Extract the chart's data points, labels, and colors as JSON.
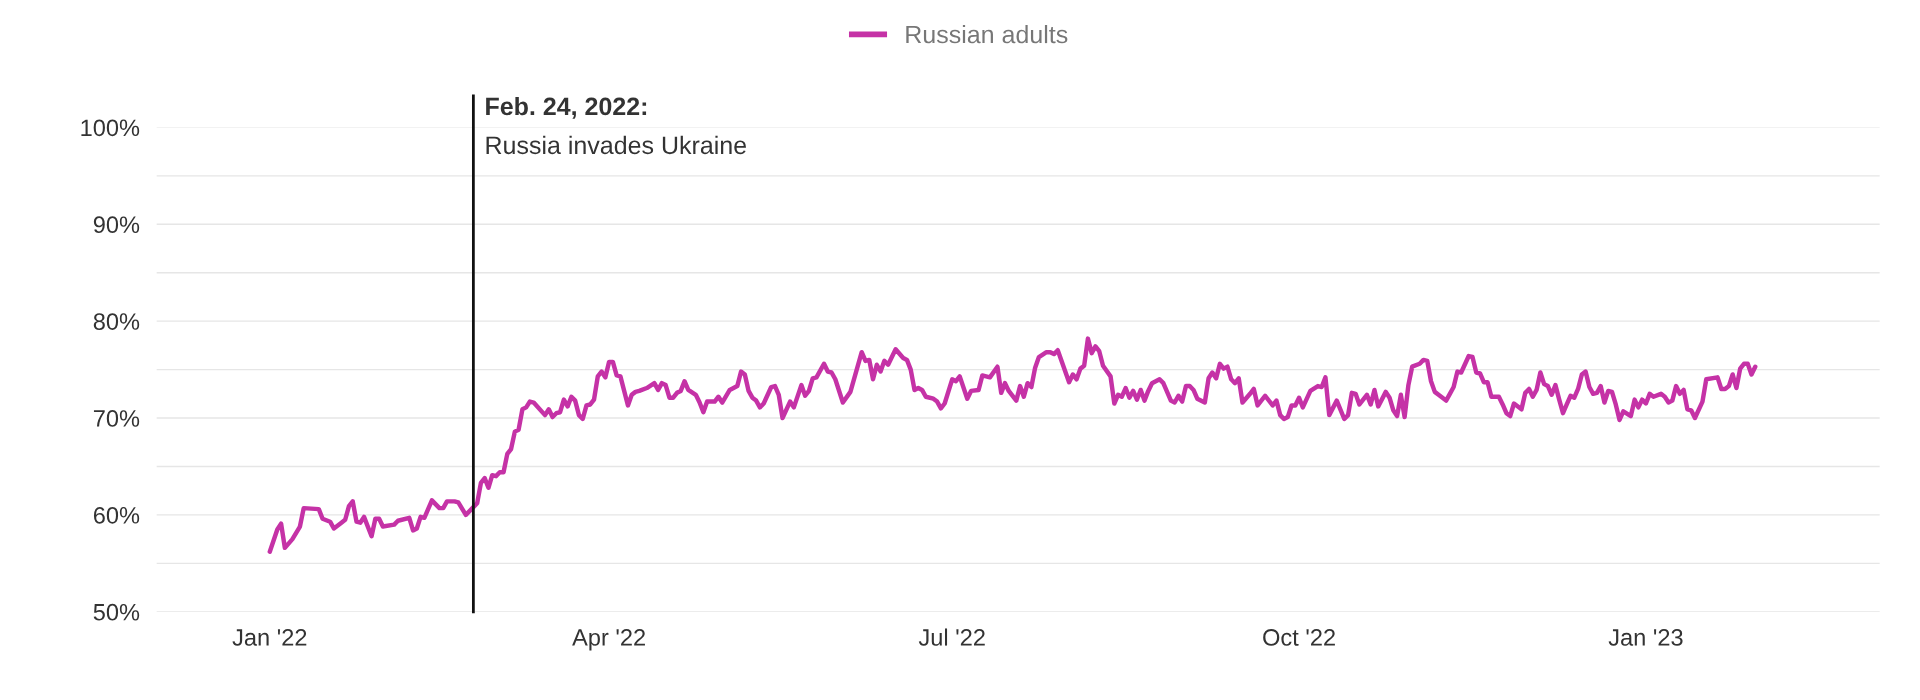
{
  "chart_data": {
    "type": "line",
    "x": [
      "2022-01-01",
      "2022-01-03",
      "2022-01-04",
      "2022-01-05",
      "2022-01-07",
      "2022-01-09",
      "2022-01-10",
      "2022-01-14",
      "2022-01-15",
      "2022-01-17",
      "2022-01-18",
      "2022-01-20",
      "2022-01-21",
      "2022-01-22",
      "2022-01-23",
      "2022-01-24",
      "2022-01-25",
      "2022-01-26",
      "2022-01-28",
      "2022-01-29",
      "2022-01-30",
      "2022-01-31",
      "2022-02-03",
      "2022-02-04",
      "2022-02-07",
      "2022-02-08",
      "2022-02-09",
      "2022-02-10",
      "2022-02-11",
      "2022-02-13",
      "2022-02-15",
      "2022-02-16",
      "2022-02-17",
      "2022-02-19",
      "2022-02-20",
      "2022-02-22",
      "2022-02-24",
      "2022-02-25",
      "2022-02-26",
      "2022-02-27",
      "2022-02-28",
      "2022-03-01",
      "2022-03-02",
      "2022-03-03",
      "2022-03-04",
      "2022-03-05",
      "2022-03-06",
      "2022-03-07",
      "2022-03-08",
      "2022-03-09",
      "2022-03-10",
      "2022-03-11",
      "2022-03-12",
      "2022-03-15",
      "2022-03-16",
      "2022-03-17",
      "2022-03-18",
      "2022-03-19",
      "2022-03-20",
      "2022-03-21",
      "2022-03-22",
      "2022-03-23",
      "2022-03-24",
      "2022-03-25",
      "2022-03-26",
      "2022-03-27",
      "2022-03-28",
      "2022-03-29",
      "2022-03-30",
      "2022-03-31",
      "2022-04-01",
      "2022-04-02",
      "2022-04-03",
      "2022-04-04",
      "2022-04-06",
      "2022-04-07",
      "2022-04-08",
      "2022-04-09",
      "2022-04-11",
      "2022-04-13",
      "2022-04-14",
      "2022-04-15",
      "2022-04-16",
      "2022-04-17",
      "2022-04-18",
      "2022-04-19",
      "2022-04-20",
      "2022-04-21",
      "2022-04-22",
      "2022-04-24",
      "2022-04-25",
      "2022-04-26",
      "2022-04-27",
      "2022-04-29",
      "2022-04-30",
      "2022-05-01",
      "2022-05-03",
      "2022-05-05",
      "2022-05-06",
      "2022-05-07",
      "2022-05-08",
      "2022-05-09",
      "2022-05-10",
      "2022-05-11",
      "2022-05-12",
      "2022-05-14",
      "2022-05-15",
      "2022-05-16",
      "2022-05-17",
      "2022-05-19",
      "2022-05-20",
      "2022-05-22",
      "2022-05-23",
      "2022-05-24",
      "2022-05-25",
      "2022-05-26",
      "2022-05-28",
      "2022-05-29",
      "2022-05-30",
      "2022-05-31",
      "2022-06-02",
      "2022-06-04",
      "2022-06-07",
      "2022-06-08",
      "2022-06-09",
      "2022-06-10",
      "2022-06-11",
      "2022-06-12",
      "2022-06-13",
      "2022-06-14",
      "2022-06-16",
      "2022-06-18",
      "2022-06-19",
      "2022-06-20",
      "2022-06-21",
      "2022-06-22",
      "2022-06-23",
      "2022-06-24",
      "2022-06-26",
      "2022-06-27",
      "2022-06-28",
      "2022-06-29",
      "2022-07-01",
      "2022-07-02",
      "2022-07-03",
      "2022-07-05",
      "2022-07-06",
      "2022-07-08",
      "2022-07-09",
      "2022-07-11",
      "2022-07-13",
      "2022-07-14",
      "2022-07-15",
      "2022-07-16",
      "2022-07-18",
      "2022-07-19",
      "2022-07-20",
      "2022-07-21",
      "2022-07-22",
      "2022-07-23",
      "2022-07-24",
      "2022-07-26",
      "2022-07-27",
      "2022-07-28",
      "2022-07-29",
      "2022-08-01",
      "2022-08-02",
      "2022-08-03",
      "2022-08-04",
      "2022-08-05",
      "2022-08-06",
      "2022-08-07",
      "2022-08-08",
      "2022-08-09",
      "2022-08-10",
      "2022-08-12",
      "2022-08-13",
      "2022-08-14",
      "2022-08-15",
      "2022-08-16",
      "2022-08-17",
      "2022-08-18",
      "2022-08-19",
      "2022-08-20",
      "2022-08-21",
      "2022-08-22",
      "2022-08-23",
      "2022-08-25",
      "2022-08-26",
      "2022-08-28",
      "2022-08-29",
      "2022-08-30",
      "2022-08-31",
      "2022-09-01",
      "2022-09-02",
      "2022-09-03",
      "2022-09-04",
      "2022-09-06",
      "2022-09-07",
      "2022-09-08",
      "2022-09-09",
      "2022-09-10",
      "2022-09-11",
      "2022-09-12",
      "2022-09-13",
      "2022-09-14",
      "2022-09-15",
      "2022-09-16",
      "2022-09-18",
      "2022-09-19",
      "2022-09-20",
      "2022-09-22",
      "2022-09-24",
      "2022-09-25",
      "2022-09-26",
      "2022-09-27",
      "2022-09-28",
      "2022-09-29",
      "2022-09-30",
      "2022-10-01",
      "2022-10-02",
      "2022-10-04",
      "2022-10-06",
      "2022-10-07",
      "2022-10-08",
      "2022-10-09",
      "2022-10-11",
      "2022-10-13",
      "2022-10-14",
      "2022-10-15",
      "2022-10-16",
      "2022-10-17",
      "2022-10-19",
      "2022-10-20",
      "2022-10-21",
      "2022-10-22",
      "2022-10-24",
      "2022-10-25",
      "2022-10-26",
      "2022-10-27",
      "2022-10-28",
      "2022-10-29",
      "2022-10-30",
      "2022-10-31",
      "2022-11-02",
      "2022-11-03",
      "2022-11-04",
      "2022-11-05",
      "2022-11-06",
      "2022-11-07",
      "2022-11-09",
      "2022-11-10",
      "2022-11-11",
      "2022-11-12",
      "2022-11-13",
      "2022-11-15",
      "2022-11-16",
      "2022-11-17",
      "2022-11-18",
      "2022-11-19",
      "2022-11-20",
      "2022-11-21",
      "2022-11-23",
      "2022-11-24",
      "2022-11-25",
      "2022-11-26",
      "2022-11-27",
      "2022-11-29",
      "2022-11-30",
      "2022-12-01",
      "2022-12-02",
      "2022-12-03",
      "2022-12-04",
      "2022-12-05",
      "2022-12-06",
      "2022-12-07",
      "2022-12-08",
      "2022-12-09",
      "2022-12-10",
      "2022-12-11",
      "2022-12-12",
      "2022-12-13",
      "2022-12-14",
      "2022-12-15",
      "2022-12-16",
      "2022-12-17",
      "2022-12-18",
      "2022-12-19",
      "2022-12-20",
      "2022-12-21",
      "2022-12-22",
      "2022-12-23",
      "2022-12-24",
      "2022-12-25",
      "2022-12-26",
      "2022-12-28",
      "2022-12-29",
      "2022-12-30",
      "2022-12-31",
      "2023-01-01",
      "2023-01-02",
      "2023-01-03",
      "2023-01-05",
      "2023-01-06",
      "2023-01-07",
      "2023-01-08",
      "2023-01-09",
      "2023-01-10",
      "2023-01-11",
      "2023-01-12",
      "2023-01-13",
      "2023-01-14",
      "2023-01-16",
      "2023-01-17",
      "2023-01-20",
      "2023-01-21",
      "2023-01-22",
      "2023-01-23",
      "2023-01-24",
      "2023-01-25",
      "2023-01-26",
      "2023-01-27",
      "2023-01-28",
      "2023-01-29",
      "2023-01-30"
    ],
    "series": [
      {
        "name": "Russian adults",
        "color": "#c532a6",
        "values": [
          56.2,
          58.5,
          59.1,
          56.6,
          57.5,
          58.8,
          60.7,
          60.6,
          59.6,
          59.3,
          58.6,
          59.2,
          59.5,
          60.9,
          61.4,
          59.3,
          59.2,
          59.8,
          57.8,
          59.6,
          59.6,
          58.8,
          59.0,
          59.4,
          59.7,
          58.4,
          58.6,
          59.8,
          59.7,
          61.5,
          60.7,
          60.7,
          61.4,
          61.4,
          61.3,
          60.0,
          60.8,
          61.2,
          63.3,
          63.8,
          62.8,
          64.1,
          64.0,
          64.4,
          64.4,
          66.3,
          66.8,
          68.6,
          68.8,
          70.9,
          71.1,
          71.7,
          71.6,
          70.3,
          70.9,
          70.1,
          70.5,
          70.6,
          71.9,
          71.2,
          72.2,
          71.8,
          70.3,
          69.9,
          71.3,
          71.4,
          71.9,
          74.3,
          74.8,
          74.2,
          75.8,
          75.8,
          74.4,
          74.3,
          71.3,
          72.4,
          72.7,
          72.8,
          73.1,
          73.6,
          72.9,
          73.6,
          73.4,
          72.1,
          72.1,
          72.6,
          72.8,
          73.8,
          72.9,
          72.4,
          71.6,
          70.6,
          71.7,
          71.7,
          72.2,
          71.6,
          72.9,
          73.3,
          74.8,
          74.5,
          72.8,
          72.1,
          71.8,
          71.1,
          71.5,
          73.2,
          73.3,
          72.4,
          70.0,
          71.7,
          71.1,
          73.4,
          72.3,
          72.8,
          74.1,
          74.2,
          75.6,
          74.8,
          74.7,
          74.0,
          71.6,
          72.7,
          76.8,
          75.9,
          76.0,
          74.0,
          75.5,
          74.8,
          75.9,
          75.5,
          77.1,
          76.2,
          76.0,
          75.0,
          72.9,
          73.1,
          72.9,
          72.2,
          72.0,
          71.7,
          71.0,
          71.5,
          74.0,
          73.8,
          74.3,
          72.0,
          72.8,
          72.9,
          74.4,
          74.2,
          75.3,
          72.6,
          73.6,
          72.8,
          71.8,
          73.3,
          72.2,
          73.6,
          73.2,
          75.2,
          76.3,
          76.8,
          76.8,
          76.6,
          77.0,
          73.7,
          74.5,
          74.0,
          75.1,
          75.4,
          78.2,
          76.7,
          77.4,
          76.9,
          75.4,
          74.3,
          71.5,
          72.4,
          72.2,
          73.1,
          72.1,
          72.8,
          71.9,
          72.9,
          71.8,
          72.8,
          73.6,
          74.0,
          73.6,
          71.8,
          71.6,
          72.3,
          71.7,
          73.3,
          73.3,
          72.9,
          72.0,
          71.6,
          74.1,
          74.7,
          74.1,
          75.6,
          75.1,
          75.3,
          74.0,
          73.6,
          74.1,
          71.6,
          72.5,
          73.0,
          71.3,
          72.3,
          71.3,
          71.8,
          70.3,
          69.9,
          70.1,
          71.3,
          71.3,
          72.1,
          71.1,
          72.8,
          73.3,
          73.2,
          74.2,
          70.3,
          71.8,
          69.9,
          70.3,
          72.6,
          72.5,
          71.4,
          72.4,
          71.4,
          72.9,
          71.2,
          72.7,
          72.1,
          70.8,
          70.2,
          72.4,
          70.1,
          73.4,
          75.3,
          75.6,
          76.0,
          75.9,
          73.8,
          72.7,
          72.4,
          71.8,
          72.5,
          73.2,
          74.8,
          74.7,
          76.4,
          76.3,
          74.7,
          74.6,
          73.7,
          73.7,
          72.2,
          72.2,
          71.4,
          70.5,
          70.2,
          71.5,
          70.9,
          72.6,
          73.0,
          72.2,
          72.9,
          74.7,
          73.5,
          73.3,
          72.4,
          73.4,
          71.9,
          70.5,
          71.4,
          72.3,
          72.1,
          73.0,
          74.5,
          74.8,
          73.2,
          72.5,
          72.6,
          73.3,
          71.6,
          72.8,
          72.7,
          71.4,
          69.8,
          70.7,
          70.2,
          71.9,
          71.1,
          71.9,
          71.5,
          72.5,
          72.2,
          72.5,
          72.2,
          71.6,
          71.8,
          73.3,
          72.5,
          72.9,
          70.9,
          70.8,
          70.0,
          71.7,
          74.0,
          74.2,
          73.0,
          73.0,
          73.3,
          74.5,
          73.1,
          75.1,
          75.6,
          75.6,
          74.5,
          75.3
        ]
      }
    ],
    "xlim": [
      "2021-12-02",
      "2023-03-04"
    ],
    "xticks": [
      {
        "value": "2022-01-01",
        "label": "Jan '22"
      },
      {
        "value": "2022-04-01",
        "label": "Apr '22"
      },
      {
        "value": "2022-07-01",
        "label": "Jul '22"
      },
      {
        "value": "2022-10-01",
        "label": "Oct '22"
      },
      {
        "value": "2023-01-01",
        "label": "Jan '23"
      }
    ],
    "ylim": [
      50,
      100
    ],
    "yticks": [
      {
        "value": 50,
        "label": "50%"
      },
      {
        "value": 55,
        "label": null
      },
      {
        "value": 60,
        "label": "60%"
      },
      {
        "value": 65,
        "label": null
      },
      {
        "value": 70,
        "label": "70%"
      },
      {
        "value": 75,
        "label": null
      },
      {
        "value": 80,
        "label": "80%"
      },
      {
        "value": 85,
        "label": null
      },
      {
        "value": 90,
        "label": "90%"
      },
      {
        "value": 95,
        "label": null
      },
      {
        "value": 100,
        "label": "100%"
      }
    ],
    "grid": "y",
    "legend": "top",
    "line_style": "solid",
    "marker": "none",
    "ref_lines": [
      {
        "axis": "x",
        "value": "2022-02-24",
        "label": "Feb. 24, 2022:\nRussia invades Ukraine",
        "color": "#111111",
        "line_style": "solid"
      }
    ]
  }
}
